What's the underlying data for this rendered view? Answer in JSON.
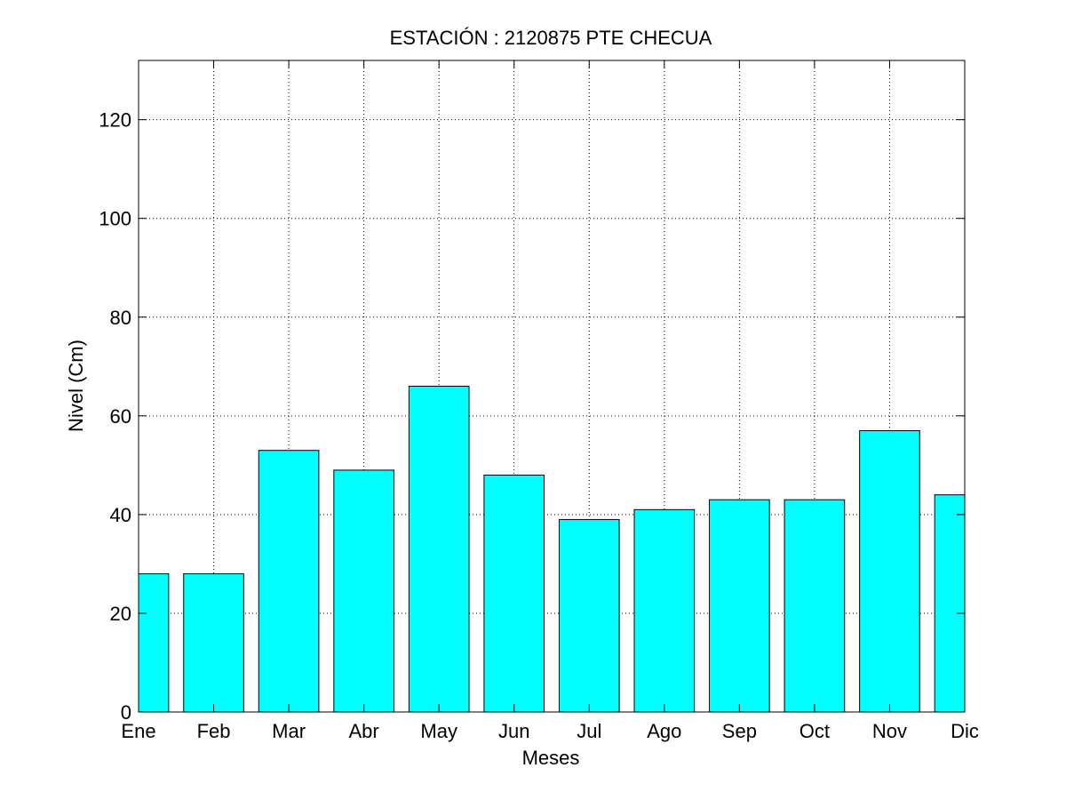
{
  "chart_data": {
    "type": "bar",
    "title": "ESTACIÓN :  2120875  PTE CHECUA",
    "xlabel": "Meses",
    "ylabel": "Nivel (Cm)",
    "categories": [
      "Ene",
      "Feb",
      "Mar",
      "Abr",
      "May",
      "Jun",
      "Jul",
      "Ago",
      "Sep",
      "Oct",
      "Nov",
      "Dic"
    ],
    "values": [
      28,
      28,
      53,
      49,
      66,
      48,
      39,
      41,
      43,
      43,
      57,
      44
    ],
    "ylim": [
      0,
      132
    ],
    "yticks": [
      0,
      20,
      40,
      60,
      80,
      100,
      120
    ],
    "grid": true,
    "bar_color": "#00ffff",
    "edge_color": "#000000"
  }
}
